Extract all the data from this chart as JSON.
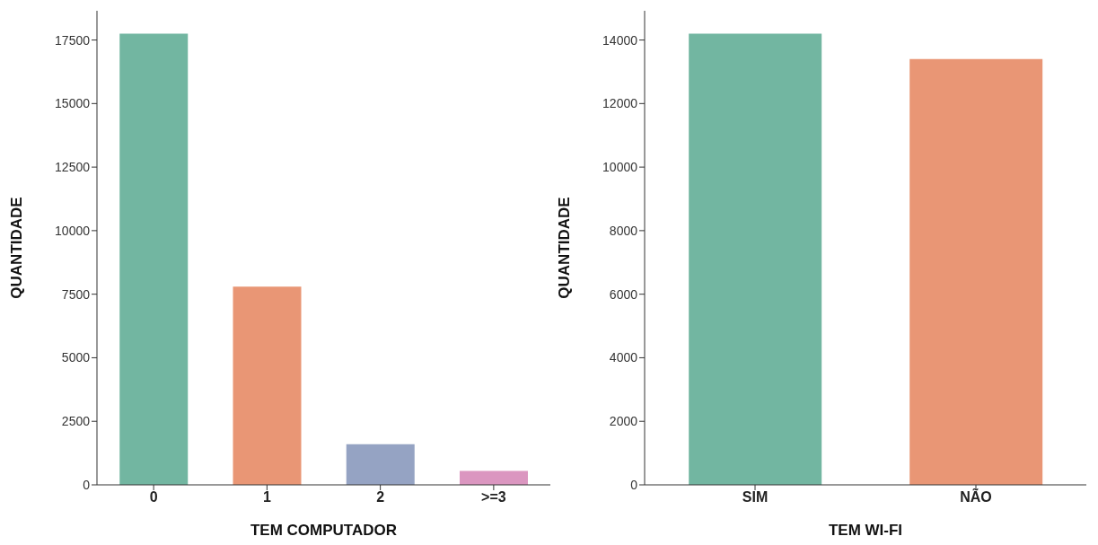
{
  "chart_data": [
    {
      "type": "bar",
      "xlabel": "TEM COMPUTADOR",
      "ylabel": "QUANTIDADE",
      "categories": [
        "0",
        "1",
        "2",
        ">=3"
      ],
      "values": [
        17750,
        7800,
        1600,
        550
      ],
      "colors": [
        "#72b6a1",
        "#e99675",
        "#95a3c3",
        "#db96c0"
      ],
      "ylim": [
        0,
        18650
      ],
      "yticks": [
        0,
        2500,
        5000,
        7500,
        10000,
        12500,
        15000,
        17500
      ],
      "grid": false
    },
    {
      "type": "bar",
      "xlabel": "TEM WI-FI",
      "ylabel": "QUANTIDADE",
      "categories": [
        "SIM",
        "NÃO"
      ],
      "values": [
        14200,
        13400
      ],
      "colors": [
        "#72b6a1",
        "#e99675"
      ],
      "ylim": [
        0,
        14920
      ],
      "yticks": [
        0,
        2000,
        4000,
        6000,
        8000,
        10000,
        12000,
        14000
      ],
      "grid": false
    }
  ]
}
